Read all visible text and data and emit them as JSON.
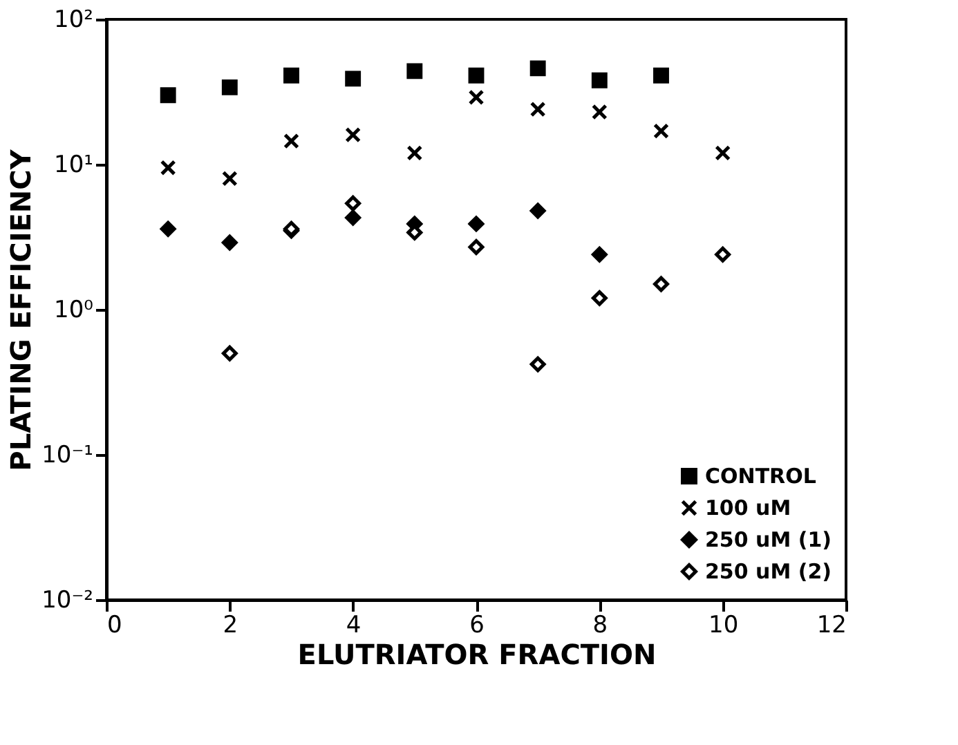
{
  "chart_data": {
    "type": "scatter",
    "xlabel": "ELUTRIATOR FRACTION",
    "ylabel": "PLATING EFFICIENCY",
    "log": "y",
    "xlim": [
      0,
      12
    ],
    "xticks": [
      0,
      2,
      4,
      6,
      8,
      10,
      12
    ],
    "ylim": [
      0.01,
      100
    ],
    "yticks": [
      {
        "value": 100,
        "label": "10²"
      },
      {
        "value": 10,
        "label": "10¹"
      },
      {
        "value": 1,
        "label": "10⁰"
      },
      {
        "value": 0.1,
        "label": "10⁻¹"
      },
      {
        "value": 0.01,
        "label": "10⁻²"
      }
    ],
    "grid": false,
    "legend": "bottom right",
    "series": [
      {
        "name": "CONTROL",
        "color": "#000000",
        "marker": "square",
        "x": [
          1,
          2,
          3,
          4,
          5,
          6,
          7,
          8,
          9
        ],
        "values": [
          30,
          34,
          41,
          39,
          44,
          41,
          46,
          38,
          41
        ]
      },
      {
        "name": "100 uM",
        "color": "#000000",
        "marker": "cross",
        "x": [
          1,
          2,
          3,
          4,
          5,
          6,
          7,
          8,
          9,
          10
        ],
        "values": [
          9.5,
          8,
          14.5,
          16,
          12,
          29,
          24,
          23,
          17,
          12
        ]
      },
      {
        "name": "250 uM (1)",
        "color": "#000000",
        "marker": "diamond",
        "x": [
          1,
          2,
          3,
          4,
          5,
          6,
          7,
          8
        ],
        "values": [
          3.6,
          2.9,
          3.5,
          4.3,
          3.9,
          3.9,
          4.8,
          2.4
        ]
      },
      {
        "name": "250 uM (2)",
        "color": "#000000",
        "marker": "diamond",
        "x": [
          2,
          3,
          4,
          5,
          6,
          7,
          8,
          9,
          10
        ],
        "values": [
          0.5,
          3.6,
          5.4,
          3.4,
          2.7,
          0.42,
          1.2,
          1.5,
          2.4
        ]
      }
    ]
  }
}
